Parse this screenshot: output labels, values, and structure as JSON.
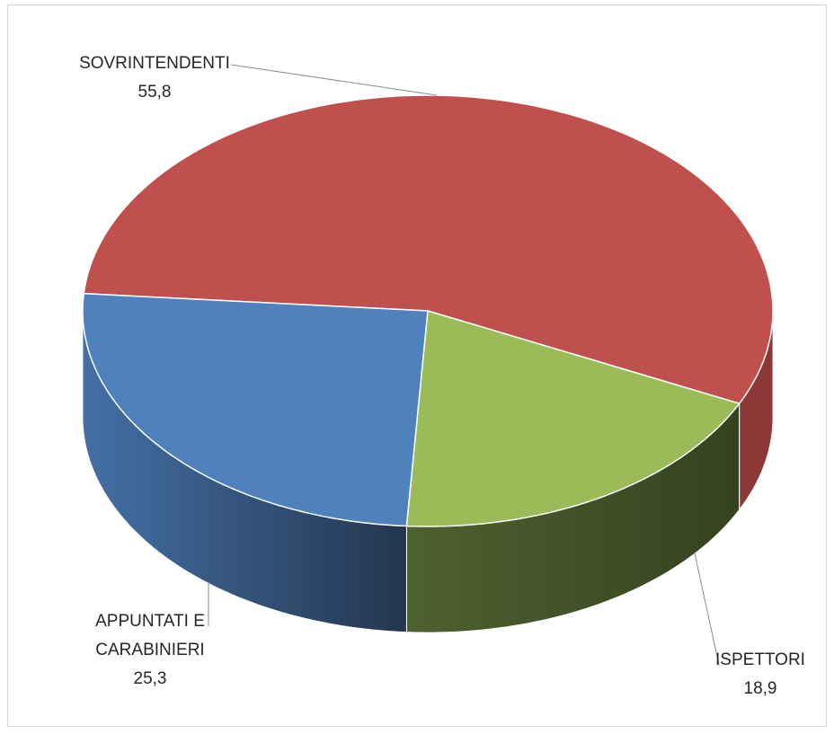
{
  "chart_data": {
    "type": "pie",
    "title": "",
    "categories": [
      "SOVRINTENDENTI",
      "ISPETTORI",
      "APPUNTATI E CARABINIERI"
    ],
    "values": [
      55.8,
      18.9,
      25.3
    ],
    "value_labels": [
      "55,8",
      "18,9",
      "25,3"
    ],
    "label_lines": {
      "SOVRINTENDENTI": [
        "SOVRINTENDENTI"
      ],
      "ISPETTORI": [
        "ISPETTORI"
      ],
      "APPUNTATI E CARABINIERI": [
        "APPUNTATI E",
        "CARABINIERI"
      ]
    },
    "colors": [
      "#C0504D",
      "#9BBB59",
      "#4F81BD"
    ],
    "side_colors": [
      "#8C3836",
      "#3F4F24",
      "#3A5F8E"
    ],
    "legend": "none",
    "style": "3d-exploded-perspective"
  }
}
